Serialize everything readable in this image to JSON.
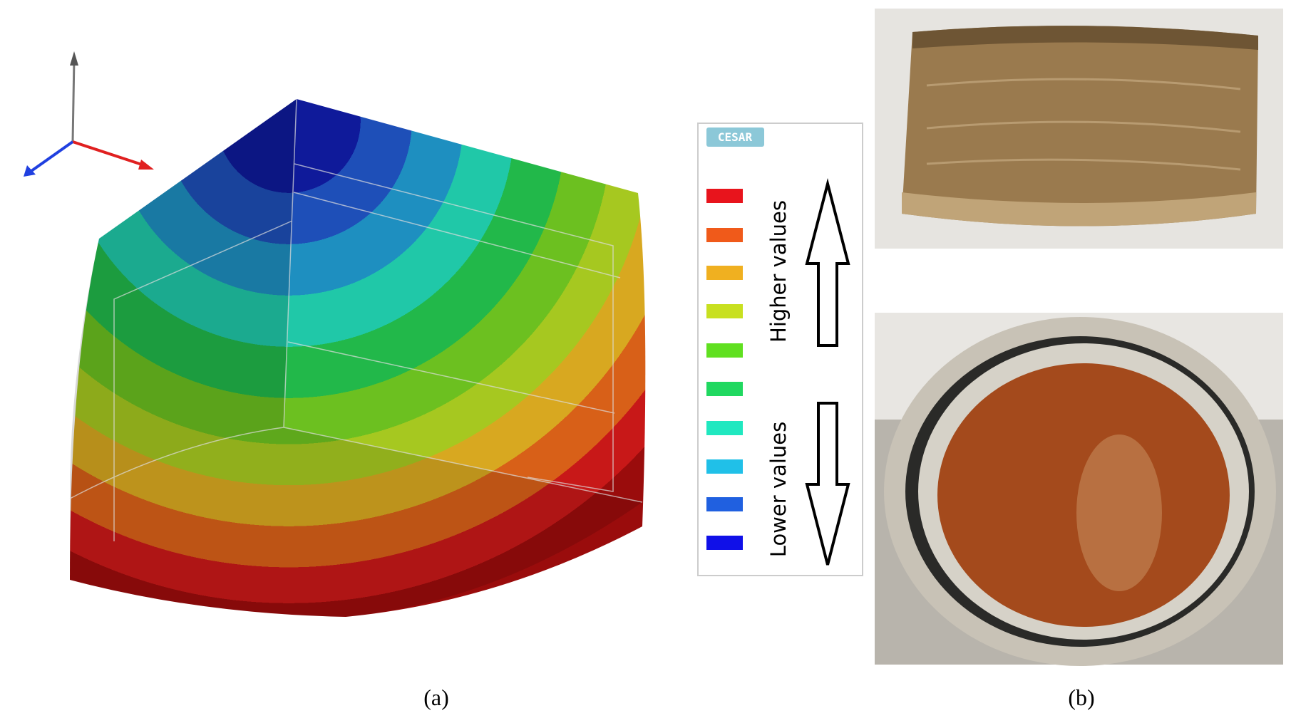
{
  "figure": {
    "panel_a": {
      "label": "(a)",
      "legend": {
        "badge": "CESAR",
        "higher": "Higher values",
        "lower": "Lower values"
      }
    },
    "panel_b": {
      "label": "(b)"
    }
  }
}
